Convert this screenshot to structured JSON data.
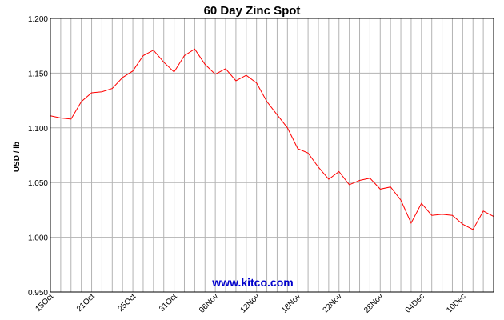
{
  "chart_data": {
    "type": "line",
    "title": "60 Day Zinc Spot",
    "ylabel": "USD / lb",
    "xlabel": "",
    "watermark": "www.kitco.com",
    "ylim": [
      0.95,
      1.2
    ],
    "y_ticks": [
      0.95,
      1.0,
      1.05,
      1.1,
      1.15,
      1.2
    ],
    "y_tick_labels": [
      "0.950",
      "1.000",
      "1.050",
      "1.100",
      "1.150",
      "1.200"
    ],
    "x_tick_labels": [
      "15Oct",
      "21Oct",
      "25Oct",
      "31Oct",
      "06Nov",
      "12Nov",
      "18Nov",
      "22Nov",
      "28Nov",
      "04Dec",
      "10Dec"
    ],
    "grid": true,
    "line_color": "#ff0000",
    "series": [
      {
        "values": [
          1.111,
          1.109,
          1.108,
          1.124,
          1.132,
          1.133,
          1.136,
          1.146,
          1.152,
          1.166,
          1.171,
          1.16,
          1.151,
          1.166,
          1.172,
          1.158,
          1.149,
          1.154,
          1.143,
          1.148,
          1.141,
          1.124,
          1.112,
          1.1,
          1.081,
          1.077,
          1.064,
          1.053,
          1.06,
          1.048,
          1.052,
          1.054,
          1.044,
          1.046,
          1.034,
          1.013,
          1.031,
          1.02,
          1.021,
          1.02,
          1.012,
          1.007,
          1.024,
          1.019
        ]
      }
    ]
  }
}
